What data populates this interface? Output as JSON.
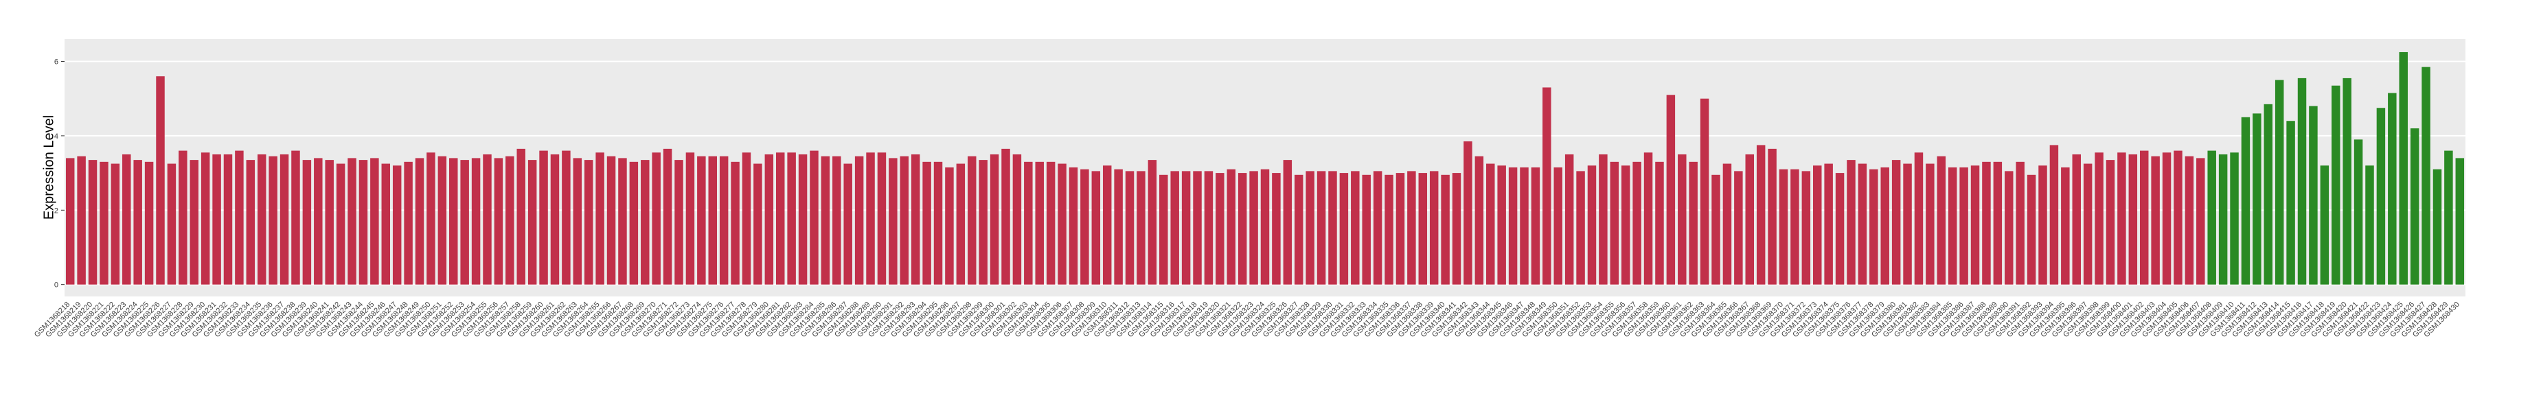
{
  "chart_data": {
    "type": "bar",
    "y_label": "Expression Level",
    "ylim": [
      -0.32,
      6.6
    ],
    "yticks": [
      0,
      2,
      4,
      6
    ],
    "grid": true,
    "categories": [
      "GSM1368218",
      "GSM1368219",
      "GSM1368220",
      "GSM1368221",
      "GSM1368222",
      "GSM1368223",
      "GSM1368224",
      "GSM1368225",
      "GSM1368226",
      "GSM1368227",
      "GSM1368228",
      "GSM1368229",
      "GSM1368230",
      "GSM1368231",
      "GSM1368232",
      "GSM1368233",
      "GSM1368234",
      "GSM1368235",
      "GSM1368236",
      "GSM1368237",
      "GSM1368238",
      "GSM1368239",
      "GSM1368240",
      "GSM1368241",
      "GSM1368242",
      "GSM1368243",
      "GSM1368244",
      "GSM1368245",
      "GSM1368246",
      "GSM1368247",
      "GSM1368248",
      "GSM1368249",
      "GSM1368250",
      "GSM1368251",
      "GSM1368252",
      "GSM1368253",
      "GSM1368254",
      "GSM1368255",
      "GSM1368256",
      "GSM1368257",
      "GSM1368258",
      "GSM1368259",
      "GSM1368260",
      "GSM1368261",
      "GSM1368262",
      "GSM1368263",
      "GSM1368264",
      "GSM1368265",
      "GSM1368266",
      "GSM1368267",
      "GSM1368268",
      "GSM1368269",
      "GSM1368270",
      "GSM1368271",
      "GSM1368272",
      "GSM1368273",
      "GSM1368274",
      "GSM1368275",
      "GSM1368276",
      "GSM1368277",
      "GSM1368278",
      "GSM1368279",
      "GSM1368280",
      "GSM1368281",
      "GSM1368282",
      "GSM1368283",
      "GSM1368284",
      "GSM1368285",
      "GSM1368286",
      "GSM1368287",
      "GSM1368288",
      "GSM1368289",
      "GSM1368290",
      "GSM1368291",
      "GSM1368292",
      "GSM1368293",
      "GSM1368294",
      "GSM1368295",
      "GSM1368296",
      "GSM1368297",
      "GSM1368298",
      "GSM1368299",
      "GSM1368300",
      "GSM1368301",
      "GSM1368302",
      "GSM1368303",
      "GSM1368304",
      "GSM1368305",
      "GSM1368306",
      "GSM1368307",
      "GSM1368308",
      "GSM1368309",
      "GSM1368310",
      "GSM1368311",
      "GSM1368312",
      "GSM1368313",
      "GSM1368314",
      "GSM1368315",
      "GSM1368316",
      "GSM1368317",
      "GSM1368318",
      "GSM1368319",
      "GSM1368320",
      "GSM1368321",
      "GSM1368322",
      "GSM1368323",
      "GSM1368324",
      "GSM1368325",
      "GSM1368326",
      "GSM1368327",
      "GSM1368328",
      "GSM1368329",
      "GSM1368330",
      "GSM1368331",
      "GSM1368332",
      "GSM1368333",
      "GSM1368334",
      "GSM1368335",
      "GSM1368336",
      "GSM1368337",
      "GSM1368338",
      "GSM1368339",
      "GSM1368340",
      "GSM1368341",
      "GSM1368342",
      "GSM1368343",
      "GSM1368344",
      "GSM1368345",
      "GSM1368346",
      "GSM1368347",
      "GSM1368348",
      "GSM1368349",
      "GSM1368350",
      "GSM1368351",
      "GSM1368352",
      "GSM1368353",
      "GSM1368354",
      "GSM1368355",
      "GSM1368356",
      "GSM1368357",
      "GSM1368358",
      "GSM1368359",
      "GSM1368360",
      "GSM1368361",
      "GSM1368362",
      "GSM1368363",
      "GSM1368364",
      "GSM1368365",
      "GSM1368366",
      "GSM1368367",
      "GSM1368368",
      "GSM1368369",
      "GSM1368370",
      "GSM1368371",
      "GSM1368372",
      "GSM1368373",
      "GSM1368374",
      "GSM1368375",
      "GSM1368376",
      "GSM1368377",
      "GSM1368378",
      "GSM1368379",
      "GSM1368380",
      "GSM1368381",
      "GSM1368382",
      "GSM1368383",
      "GSM1368384",
      "GSM1368385",
      "GSM1368386",
      "GSM1368387",
      "GSM1368388",
      "GSM1368389",
      "GSM1368390",
      "GSM1368391",
      "GSM1368392",
      "GSM1368393",
      "GSM1368394",
      "GSM1368395",
      "GSM1368396",
      "GSM1368397",
      "GSM1368398",
      "GSM1368399",
      "GSM1368400",
      "GSM1368401",
      "GSM1368402",
      "GSM1368403",
      "GSM1368404",
      "GSM1368405",
      "GSM1368406",
      "GSM1368407",
      "GSM1368408",
      "GSM1368409",
      "GSM1368410",
      "GSM1368411",
      "GSM1368412",
      "GSM1368413",
      "GSM1368414",
      "GSM1368415",
      "GSM1368416",
      "GSM1368417",
      "GSM1368418",
      "GSM1368419",
      "GSM1368420",
      "GSM1368421",
      "GSM1368422",
      "GSM1368423",
      "GSM1368424",
      "GSM1368425",
      "GSM1368426",
      "GSM1368427",
      "GSM1368428",
      "GSM1368429",
      "GSM1368430"
    ],
    "series": [
      {
        "color": "#c1304a",
        "values": [
          3.4,
          3.45,
          3.35,
          3.3,
          3.25,
          3.5,
          3.35,
          3.3,
          5.6,
          3.25,
          3.6,
          3.35,
          3.55,
          3.5,
          3.5,
          3.6,
          3.35,
          3.5,
          3.45,
          3.5,
          3.6,
          3.35,
          3.4,
          3.35,
          3.25,
          3.4,
          3.35,
          3.4,
          3.25,
          3.2,
          3.3,
          3.4,
          3.55,
          3.45,
          3.4,
          3.35,
          3.4,
          3.5,
          3.4,
          3.45,
          3.65,
          3.35,
          3.6,
          3.5,
          3.6,
          3.4,
          3.35,
          3.55,
          3.45,
          3.4,
          3.3,
          3.35,
          3.55,
          3.65,
          3.35,
          3.55,
          3.45,
          3.45,
          3.45,
          3.3,
          3.55,
          3.25,
          3.5,
          3.55,
          3.55,
          3.5,
          3.6,
          3.45,
          3.45,
          3.25,
          3.45,
          3.55,
          3.55,
          3.4,
          3.45,
          3.5,
          3.3,
          3.3,
          3.15,
          3.25,
          3.45,
          3.35,
          3.5,
          3.65,
          3.5,
          3.3,
          3.3,
          3.3,
          3.25,
          3.15,
          3.1,
          3.05,
          3.2,
          3.1,
          3.05,
          3.05,
          3.35,
          2.95,
          3.05,
          3.05,
          3.05,
          3.05,
          3.0,
          3.1,
          3.0,
          3.05,
          3.1,
          3.0,
          3.35,
          2.95,
          3.05,
          3.05,
          3.05,
          3.0,
          3.05,
          2.95,
          3.05,
          2.95,
          3.0,
          3.05,
          3.0,
          3.05,
          2.95,
          3.0,
          3.85,
          3.45,
          3.25,
          3.2,
          3.15,
          3.15,
          3.15,
          5.3,
          3.15,
          3.5,
          3.05,
          3.2,
          3.5,
          3.3,
          3.2,
          3.3,
          3.55,
          3.3,
          5.1,
          3.5,
          3.3,
          5.0,
          2.95,
          3.25,
          3.05,
          3.5,
          3.75,
          3.65,
          3.1,
          3.1,
          3.05,
          3.2,
          3.25,
          3.0,
          3.35,
          3.25,
          3.1,
          3.15,
          3.35,
          3.25,
          3.55,
          3.25,
          3.45,
          3.15,
          3.15,
          3.2,
          3.3,
          3.3,
          3.05,
          3.3,
          2.95,
          3.2,
          3.75,
          3.15,
          3.5,
          3.25,
          3.55,
          3.35,
          3.55,
          3.5,
          3.6,
          3.45,
          3.55,
          3.6,
          3.45,
          3.4,
          null,
          null,
          null,
          null,
          null,
          null,
          null,
          null,
          null,
          null,
          null,
          null,
          null,
          null,
          null,
          null,
          null,
          null,
          null,
          null,
          null,
          null,
          null
        ]
      },
      {
        "color": "#2a8a24",
        "values": [
          null,
          null,
          null,
          null,
          null,
          null,
          null,
          null,
          null,
          null,
          null,
          null,
          null,
          null,
          null,
          null,
          null,
          null,
          null,
          null,
          null,
          null,
          null,
          null,
          null,
          null,
          null,
          null,
          null,
          null,
          null,
          null,
          null,
          null,
          null,
          null,
          null,
          null,
          null,
          null,
          null,
          null,
          null,
          null,
          null,
          null,
          null,
          null,
          null,
          null,
          null,
          null,
          null,
          null,
          null,
          null,
          null,
          null,
          null,
          null,
          null,
          null,
          null,
          null,
          null,
          null,
          null,
          null,
          null,
          null,
          null,
          null,
          null,
          null,
          null,
          null,
          null,
          null,
          null,
          null,
          null,
          null,
          null,
          null,
          null,
          null,
          null,
          null,
          null,
          null,
          null,
          null,
          null,
          null,
          null,
          null,
          null,
          null,
          null,
          null,
          null,
          null,
          null,
          null,
          null,
          null,
          null,
          null,
          null,
          null,
          null,
          null,
          null,
          null,
          null,
          null,
          null,
          null,
          null,
          null,
          null,
          null,
          null,
          null,
          null,
          null,
          null,
          null,
          null,
          null,
          null,
          null,
          null,
          null,
          null,
          null,
          null,
          null,
          null,
          null,
          null,
          null,
          null,
          null,
          null,
          null,
          null,
          null,
          null,
          null,
          null,
          null,
          null,
          null,
          null,
          null,
          null,
          null,
          null,
          null,
          null,
          null,
          null,
          null,
          null,
          null,
          null,
          null,
          null,
          null,
          null,
          null,
          null,
          null,
          null,
          null,
          null,
          null,
          null,
          null,
          null,
          null,
          null,
          null,
          null,
          null,
          null,
          null,
          null,
          null,
          3.6,
          3.5,
          3.55,
          4.5,
          4.6,
          4.85,
          5.5,
          4.4,
          5.55,
          4.8,
          3.2,
          5.35,
          5.55,
          3.9,
          3.2,
          4.75,
          5.15,
          6.25,
          4.2,
          5.85,
          3.1,
          3.6,
          3.4
        ]
      }
    ]
  }
}
